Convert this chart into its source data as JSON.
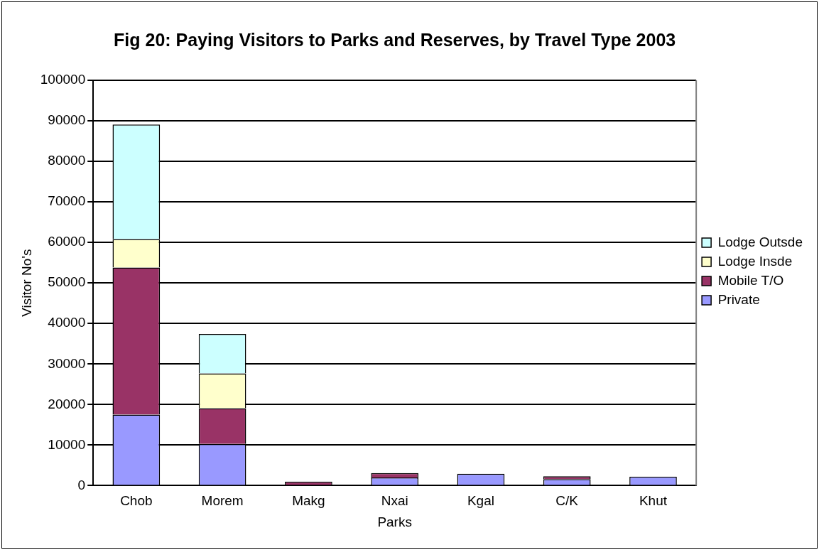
{
  "chart_data": {
    "type": "bar",
    "title": "Fig 20: Paying Visitors to Parks and Reserves, by Travel Type 2003",
    "xlabel": "Parks",
    "ylabel": "Visitor No's",
    "categories": [
      "Chob",
      "Morem",
      "Makg",
      "Nxai",
      "Kgal",
      "C/K",
      "Khut"
    ],
    "stacked": true,
    "series": [
      {
        "name": "Private",
        "color": "#9999ff",
        "values": [
          17500,
          10300,
          null,
          2000,
          2900,
          1600,
          2200
        ]
      },
      {
        "name": "Mobile T/O",
        "color": "#993366",
        "values": [
          36300,
          8800,
          1000,
          1100,
          0,
          700,
          0
        ]
      },
      {
        "name": "Lodge Insde",
        "color": "#ffffcc",
        "values": [
          7000,
          8600,
          0,
          0,
          0,
          0,
          0
        ]
      },
      {
        "name": "Lodge Outsde",
        "color": "#ccffff",
        "values": [
          28300,
          9700,
          0,
          0,
          0,
          0,
          0
        ]
      }
    ],
    "ylim": [
      0,
      100000
    ],
    "yticks": [
      0,
      10000,
      20000,
      30000,
      40000,
      50000,
      60000,
      70000,
      80000,
      90000,
      100000
    ],
    "grid": "y",
    "legend": "right"
  }
}
